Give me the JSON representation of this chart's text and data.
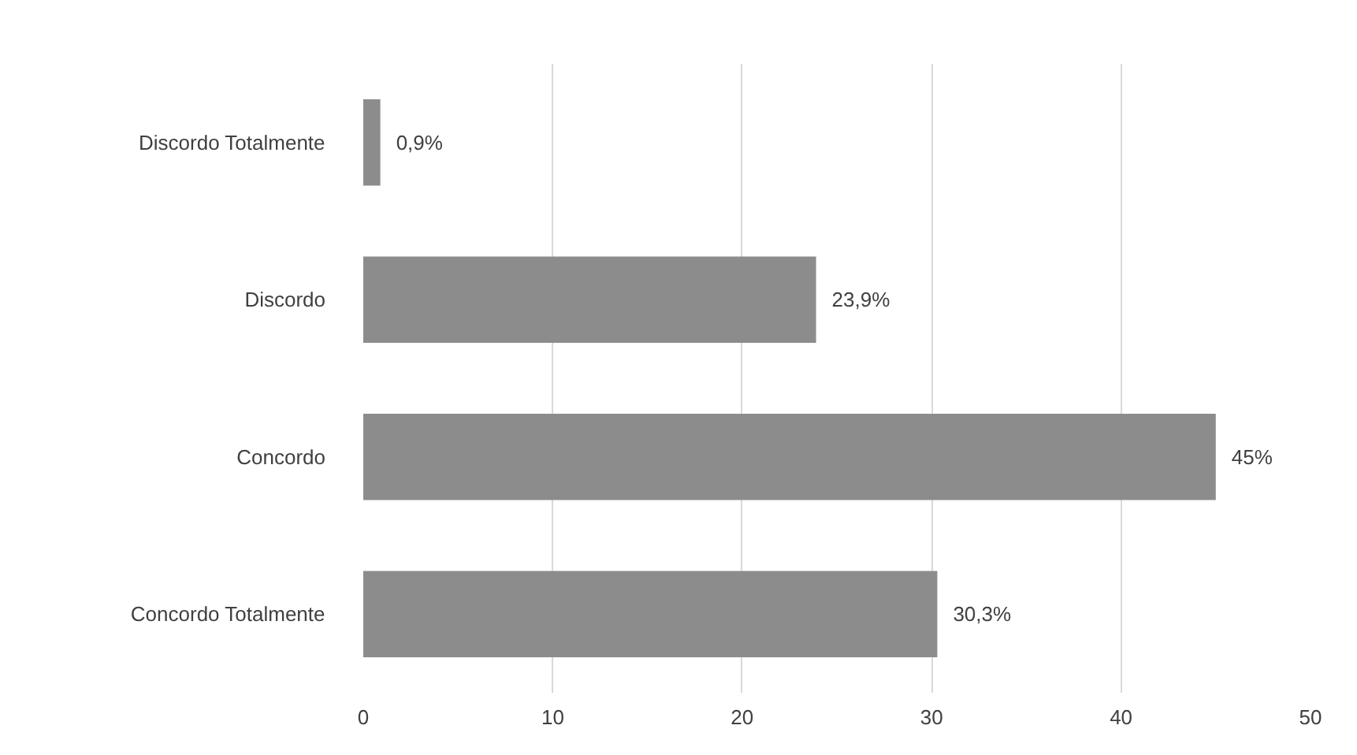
{
  "chart_data": {
    "type": "bar",
    "orientation": "horizontal",
    "categories": [
      "Discordo Totalmente",
      "Discordo",
      "Concordo",
      "Concordo Totalmente"
    ],
    "values": [
      0.9,
      23.9,
      45,
      30.3
    ],
    "value_labels": [
      "0,9%",
      "23,9%",
      "45%",
      "30,3%"
    ],
    "color": "#8c8c8c",
    "xlim": [
      0,
      50
    ],
    "xticks": [
      0,
      10,
      20,
      30,
      40,
      50
    ],
    "grid": "x"
  }
}
